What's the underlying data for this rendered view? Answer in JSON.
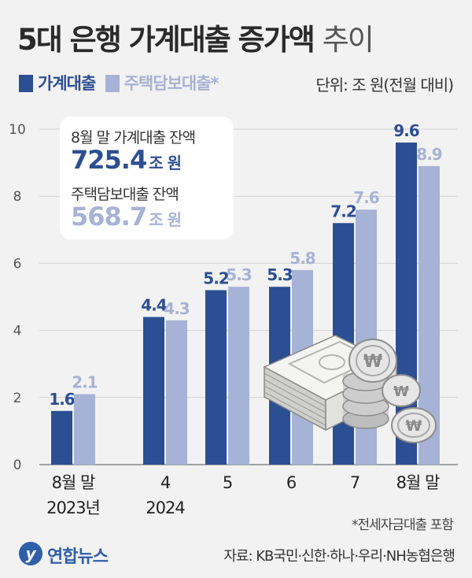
{
  "title_bold": "5대 은행 가계대출 증가액",
  "title_light": "추이",
  "legend": [
    {
      "label": "가계대출",
      "color": "#2c4f93"
    },
    {
      "label": "주택담보대출*",
      "color": "#a6b3d6"
    }
  ],
  "unit": "단위: 조 원(전월 대비)",
  "infobox": {
    "label1": "8월 말 가계대출 잔액",
    "value1": "725.4",
    "unit1": "조 원",
    "label2": "주택담보대출 잔액",
    "value2": "568.7",
    "unit2": "조 원"
  },
  "footnote": "*전세자금대출 포함",
  "logo": "연합뉴스",
  "source": "자료: KB국민·신한·하나·우리·NH농협은행",
  "colors": {
    "primary": "#2c4f93",
    "secondary": "#a6b3d6"
  },
  "chart_data": {
    "type": "bar",
    "categories": [
      {
        "line1": "8월 말",
        "line2": "2023년"
      },
      {
        "line1": "4",
        "line2": "2024"
      },
      {
        "line1": "5",
        "line2": ""
      },
      {
        "line1": "6",
        "line2": ""
      },
      {
        "line1": "7",
        "line2": ""
      },
      {
        "line1": "8월 말",
        "line2": ""
      }
    ],
    "series": [
      {
        "name": "가계대출",
        "values": [
          1.6,
          4.4,
          5.2,
          5.3,
          7.2,
          9.6
        ]
      },
      {
        "name": "주택담보대출*",
        "values": [
          2.1,
          4.3,
          5.3,
          5.8,
          7.6,
          8.9
        ]
      }
    ],
    "yticks": [
      0,
      2,
      4,
      6,
      8,
      10
    ],
    "ylim": [
      0,
      10
    ],
    "grid": true
  }
}
